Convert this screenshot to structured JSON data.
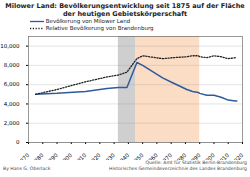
{
  "chart_data": {
    "type": "line",
    "title": "Milower Land: Bevölkerungsentwicklung seit 1875 auf der Fläche der heutigen Gebietskörperschaft",
    "x": [
      1875,
      1890,
      1910,
      1925,
      1933,
      1939,
      1946,
      1950,
      1964,
      1971,
      1981,
      1985,
      1989,
      1990,
      1995,
      2000,
      2005,
      2010,
      2015,
      2016
    ],
    "series": [
      {
        "name": "Bevölkerung von Milower Land",
        "color": "#2e5a9e",
        "line_style": "solid",
        "values": [
          5000,
          5100,
          5300,
          5600,
          5700,
          5700,
          8300,
          8000,
          6700,
          6200,
          5500,
          5300,
          5200,
          5100,
          4900,
          4900,
          4700,
          4400,
          4300,
          4300
        ]
      },
      {
        "name": "Relative Bevölkerung von Brandenburg",
        "color": "#222222",
        "line_style": "dotted",
        "values": [
          5000,
          5500,
          6300,
          6800,
          7000,
          7300,
          8700,
          9000,
          8700,
          8800,
          8900,
          9000,
          9000,
          8900,
          8800,
          9000,
          8900,
          8700,
          8800,
          8800
        ]
      }
    ],
    "shaded_periods": [
      {
        "from": 1933,
        "to": 1945,
        "color": "#cfcfcf"
      },
      {
        "from": 1945,
        "to": 1990,
        "color": "#fbdcc4"
      }
    ],
    "xlim": [
      1870,
      2020
    ],
    "xticks": [
      1870,
      1880,
      1890,
      1900,
      1910,
      1920,
      1930,
      1940,
      1950,
      1960,
      1970,
      1980,
      1990,
      2000,
      2010,
      2020
    ],
    "ylim": [
      0,
      11000
    ],
    "yticks": [
      0,
      {
        "value": 2000,
        "label": "2,000"
      },
      {
        "value": 4000,
        "label": "4,000"
      },
      {
        "value": 6000,
        "label": "6,000"
      },
      {
        "value": 8000,
        "label": "8,000"
      },
      {
        "value": 10000,
        "label": "10,000"
      }
    ],
    "grid": true,
    "source": [
      "Quelle: Amt für Statistik Berlin-Brandenburg",
      "Historisches Gemeindeverzeichnis des Landes Brandenburg"
    ],
    "author": "By Hans G. Oberlack"
  }
}
